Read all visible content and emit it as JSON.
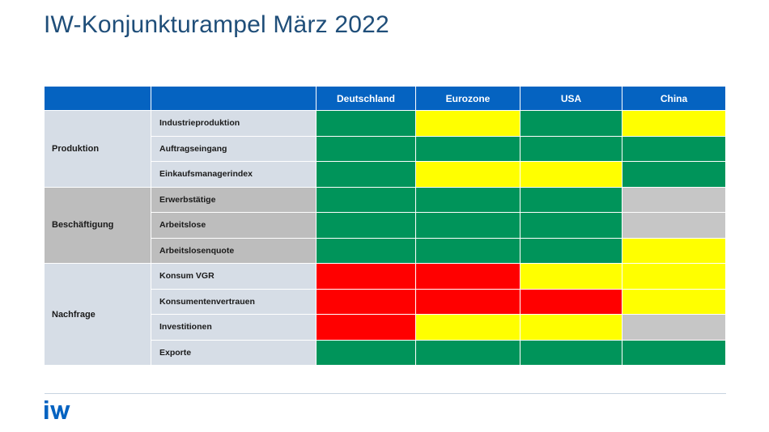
{
  "title": "IW-Konjunkturampel März 2022",
  "columns": [
    "Deutschland",
    "Eurozone",
    "USA",
    "China"
  ],
  "colors": {
    "header_blue": "#0563c1",
    "green": "#00945a",
    "yellow": "#ffff00",
    "red": "#ff0000",
    "grey": "#c6c6c6"
  },
  "groups": [
    {
      "label": "Produktion",
      "rows": [
        {
          "label": "Industrieproduktion",
          "status": [
            "green",
            "yellow",
            "green",
            "yellow"
          ]
        },
        {
          "label": "Auftragseingang",
          "status": [
            "green",
            "green",
            "green",
            "green"
          ]
        },
        {
          "label": "Einkaufsmanagerindex",
          "status": [
            "green",
            "yellow",
            "yellow",
            "green"
          ]
        }
      ]
    },
    {
      "label": "Beschäftigung",
      "rows": [
        {
          "label": "Erwerbstätige",
          "status": [
            "green",
            "green",
            "green",
            "grey"
          ]
        },
        {
          "label": "Arbeitslose",
          "status": [
            "green",
            "green",
            "green",
            "grey"
          ]
        },
        {
          "label": "Arbeitslosenquote",
          "status": [
            "green",
            "green",
            "green",
            "yellow"
          ]
        }
      ]
    },
    {
      "label": "Nachfrage",
      "rows": [
        {
          "label": "Konsum VGR",
          "status": [
            "red",
            "red",
            "yellow",
            "yellow"
          ]
        },
        {
          "label": "Konsumentenvertrauen",
          "status": [
            "red",
            "red",
            "red",
            "yellow"
          ]
        },
        {
          "label": "Investitionen",
          "status": [
            "red",
            "yellow",
            "yellow",
            "grey"
          ]
        },
        {
          "label": "Exporte",
          "status": [
            "green",
            "green",
            "green",
            "green"
          ]
        }
      ]
    }
  ],
  "logo": {
    "text": "iW",
    "icon": "iw-logo-icon"
  }
}
